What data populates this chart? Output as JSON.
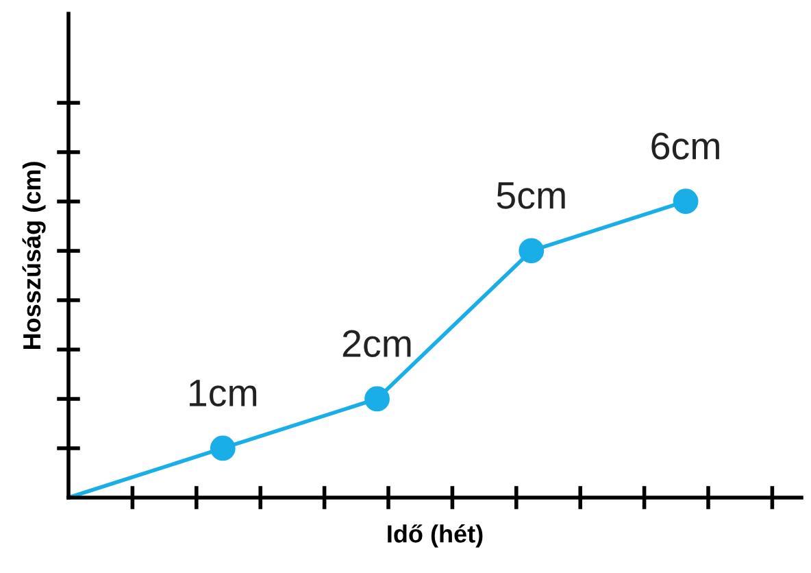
{
  "chart_data": {
    "type": "line",
    "xlabel": "Idő (hét)",
    "ylabel": "Hosszúság (cm)",
    "categories": [
      null,
      null,
      null,
      null,
      null
    ],
    "ylim": [
      0,
      9.8
    ],
    "marker": "circle",
    "series": [
      {
        "color": "#1aaee8",
        "values": [
          0,
          1,
          2,
          5,
          6
        ],
        "value_labels": [
          null,
          "1cm",
          "2cm",
          "5cm",
          "6cm"
        ]
      }
    ]
  }
}
